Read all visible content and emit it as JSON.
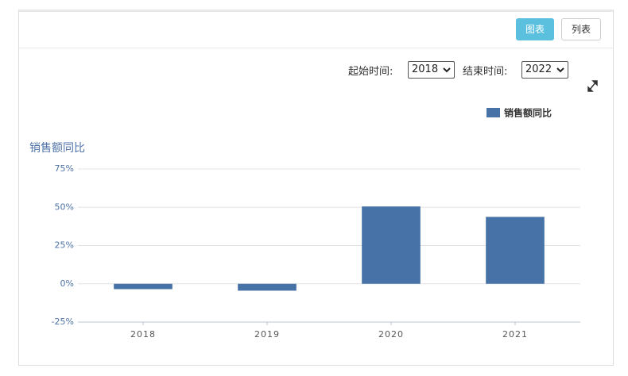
{
  "controls": {
    "chart_button": "图表",
    "list_button": "列表",
    "start_label": "起始时间:",
    "start_value": "2018",
    "end_label": "结束时间:",
    "end_value": "2022"
  },
  "chart_data": {
    "type": "bar",
    "y_label": "销售额同比",
    "categories": [
      "2018",
      "2019",
      "2020",
      "2021"
    ],
    "series": [
      {
        "name": "销售额同比",
        "color": "#4672a8",
        "values": [
          -3.5,
          -4.5,
          50.5,
          43.7
        ]
      }
    ],
    "ylim": [
      -25,
      75
    ],
    "yticks": [
      {
        "value": -25,
        "label": "-25%"
      },
      {
        "value": 0,
        "label": "0%"
      },
      {
        "value": 25,
        "label": "25%"
      },
      {
        "value": 50,
        "label": "50%"
      },
      {
        "value": 75,
        "label": "75%"
      }
    ],
    "grid": true,
    "legend": "top-right"
  }
}
